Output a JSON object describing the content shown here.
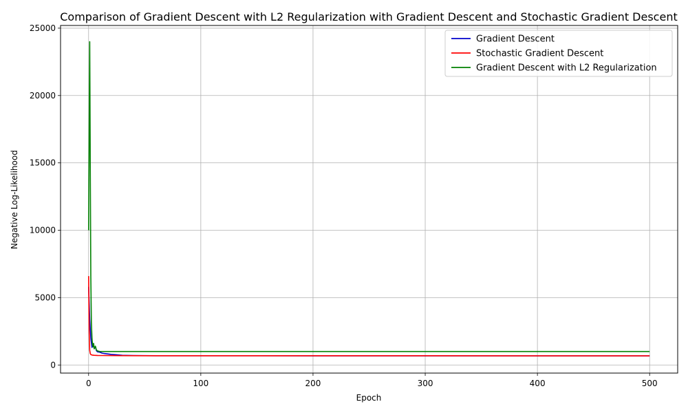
{
  "chart_data": {
    "type": "line",
    "title": "Comparison of Gradient Descent with L2 Regularization with Gradient Descent and Stochastic Gradient Descent",
    "xlabel": "Epoch",
    "ylabel": "Negative Log-Likelihood",
    "xlim": [
      -25,
      525
    ],
    "ylim": [
      -600,
      25200
    ],
    "xticks": [
      0,
      100,
      200,
      300,
      400,
      500
    ],
    "yticks": [
      0,
      5000,
      10000,
      15000,
      20000,
      25000
    ],
    "grid": true,
    "legend_position": "top-right",
    "series": [
      {
        "name": "Gradient Descent",
        "color": "#0000cc",
        "x": [
          0,
          1,
          2,
          3,
          4,
          5,
          6,
          7,
          8,
          10,
          12,
          14,
          17,
          20,
          25,
          30,
          40,
          60,
          100,
          200,
          300,
          400,
          500
        ],
        "y": [
          5800,
          3400,
          2000,
          1300,
          1550,
          1250,
          1350,
          1050,
          980,
          950,
          880,
          850,
          820,
          790,
          760,
          720,
          700,
          690,
          685,
          680,
          678,
          676,
          675
        ]
      },
      {
        "name": "Stochastic Gradient Descent",
        "color": "#ff0000",
        "x": [
          0,
          0.5,
          1,
          1.5,
          2,
          3,
          5,
          8,
          12,
          20,
          30,
          50,
          100,
          200,
          300,
          400,
          500
        ],
        "y": [
          6600,
          2500,
          1100,
          850,
          780,
          740,
          720,
          710,
          705,
          700,
          695,
          690,
          688,
          686,
          685,
          684,
          683
        ]
      },
      {
        "name": "Gradient Descent with L2 Regularization",
        "color": "#008000",
        "x": [
          0,
          0.5,
          1,
          1.5,
          2,
          2.5,
          3,
          3.5,
          4,
          4.5,
          5,
          6,
          7,
          8,
          9,
          10,
          12,
          15,
          20,
          30,
          50,
          100,
          200,
          300,
          400,
          500
        ],
        "y": [
          10000,
          17500,
          24000,
          15000,
          6500,
          3200,
          2000,
          1500,
          1350,
          1600,
          1200,
          1400,
          1100,
          1050,
          1020,
          1000,
          1000,
          1000,
          1000,
          1000,
          1000,
          1000,
          1000,
          1000,
          1000,
          1000
        ]
      }
    ]
  }
}
